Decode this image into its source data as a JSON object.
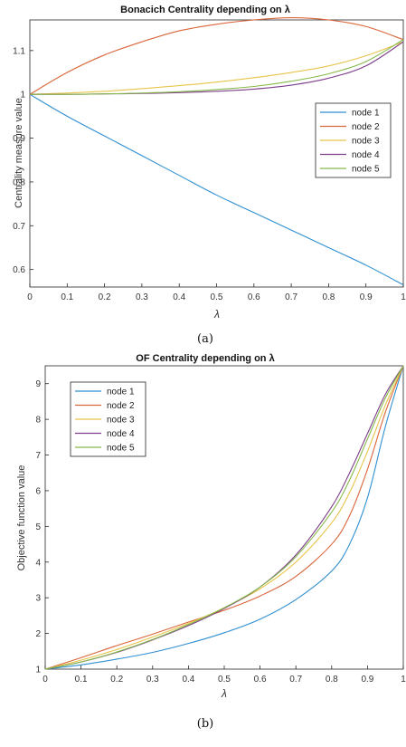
{
  "captions": [
    "(a)",
    "(b)"
  ],
  "colors": {
    "node 1": "#2f8fd1",
    "node 2": "#d9653a",
    "node 3": "#e8c44a",
    "node 4": "#7e3e8a",
    "node 5": "#86b94a"
  },
  "chart_data": [
    {
      "type": "line",
      "title": "Bonacich Centrality depending on λ",
      "xlabel": "λ",
      "ylabel": "Centrality measure value",
      "xlim": [
        0,
        1
      ],
      "ylim": [
        0.56,
        1.17
      ],
      "xticks": [
        "0",
        "0.1",
        "0.2",
        "0.3",
        "0.4",
        "0.5",
        "0.6",
        "0.7",
        "0.8",
        "0.9",
        "1"
      ],
      "yticks": [
        "0.6",
        "0.7",
        "0.8",
        "0.9",
        "1",
        "1.1"
      ],
      "grid": false,
      "legend_position": "right",
      "x": [
        0,
        0.1,
        0.2,
        0.3,
        0.4,
        0.5,
        0.6,
        0.7,
        0.8,
        0.9,
        1.0
      ],
      "series": [
        {
          "name": "node 1",
          "values": [
            1.0,
            0.95,
            0.905,
            0.86,
            0.815,
            0.77,
            0.73,
            0.69,
            0.65,
            0.61,
            0.565
          ]
        },
        {
          "name": "node 2",
          "values": [
            1.0,
            1.05,
            1.09,
            1.12,
            1.145,
            1.16,
            1.17,
            1.175,
            1.17,
            1.155,
            1.125
          ]
        },
        {
          "name": "node 3",
          "values": [
            1.0,
            1.003,
            1.007,
            1.013,
            1.02,
            1.028,
            1.038,
            1.05,
            1.065,
            1.088,
            1.12
          ]
        },
        {
          "name": "node 4",
          "values": [
            1.0,
            1.0,
            1.001,
            1.002,
            1.004,
            1.007,
            1.012,
            1.021,
            1.037,
            1.065,
            1.12
          ]
        },
        {
          "name": "node 5",
          "values": [
            1.0,
            1.0,
            1.001,
            1.003,
            1.006,
            1.011,
            1.018,
            1.03,
            1.047,
            1.075,
            1.125
          ]
        }
      ]
    },
    {
      "type": "line",
      "title": "OF Centrality depending on λ",
      "xlabel": "λ",
      "ylabel": "Objective function value",
      "xlim": [
        0,
        1
      ],
      "ylim": [
        1,
        9.5
      ],
      "xticks": [
        "0",
        "0.1",
        "0.2",
        "0.3",
        "0.4",
        "0.5",
        "0.6",
        "0.7",
        "0.8",
        "0.9",
        "1"
      ],
      "yticks": [
        "1",
        "2",
        "3",
        "4",
        "5",
        "6",
        "7",
        "8",
        "9"
      ],
      "grid": false,
      "legend_position": "top-left",
      "x": [
        0,
        0.1,
        0.2,
        0.3,
        0.4,
        0.5,
        0.6,
        0.7,
        0.8,
        0.85,
        0.9,
        0.95,
        1.0
      ],
      "series": [
        {
          "name": "node 1",
          "values": [
            1.0,
            1.12,
            1.28,
            1.47,
            1.72,
            2.02,
            2.4,
            2.95,
            3.75,
            4.5,
            5.8,
            7.8,
            9.5
          ]
        },
        {
          "name": "node 2",
          "values": [
            1.0,
            1.32,
            1.66,
            1.98,
            2.32,
            2.65,
            3.05,
            3.6,
            4.5,
            5.3,
            6.6,
            8.2,
            9.5
          ]
        },
        {
          "name": "node 3",
          "values": [
            1.0,
            1.25,
            1.55,
            1.9,
            2.28,
            2.72,
            3.25,
            4.0,
            5.1,
            5.95,
            7.1,
            8.4,
            9.5
          ]
        },
        {
          "name": "node 4",
          "values": [
            1.0,
            1.2,
            1.47,
            1.82,
            2.22,
            2.7,
            3.3,
            4.2,
            5.55,
            6.5,
            7.6,
            8.7,
            9.5
          ]
        },
        {
          "name": "node 5",
          "values": [
            1.0,
            1.2,
            1.48,
            1.83,
            2.25,
            2.72,
            3.3,
            4.15,
            5.4,
            6.3,
            7.45,
            8.6,
            9.5
          ]
        }
      ]
    }
  ]
}
